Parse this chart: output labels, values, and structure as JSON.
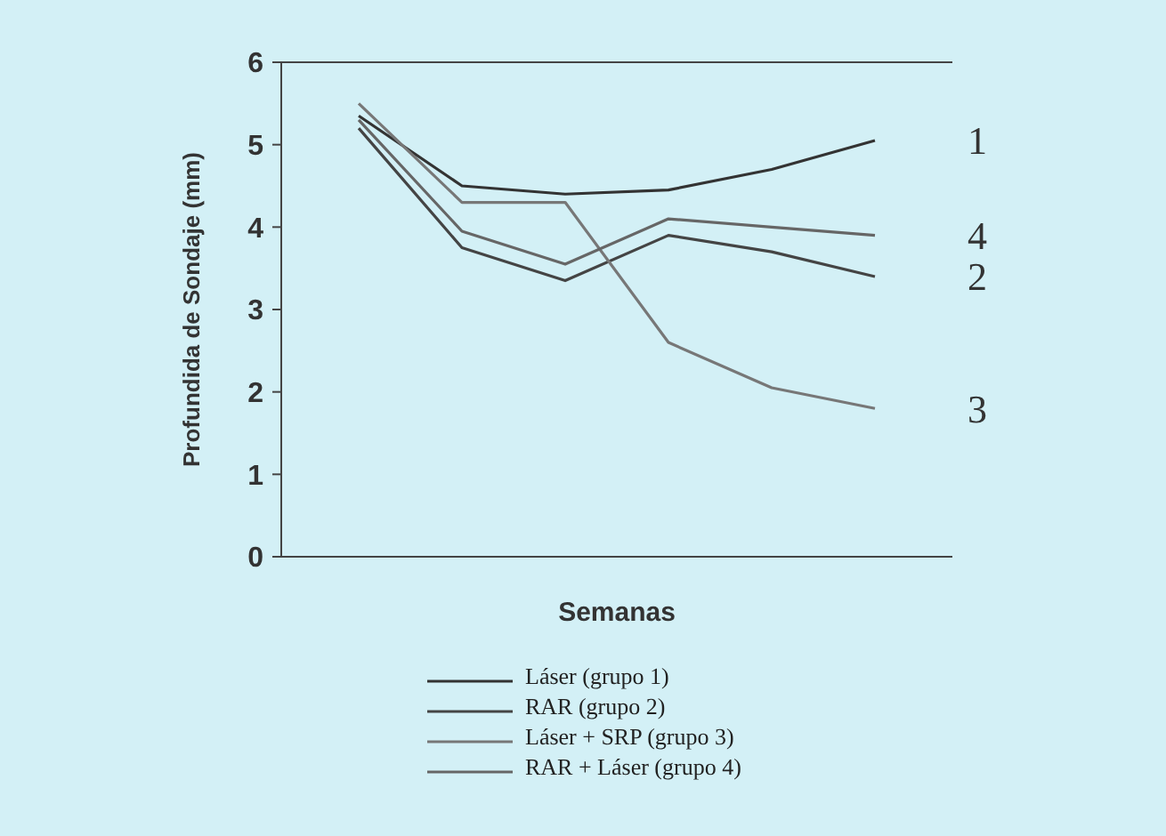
{
  "chart_data": {
    "type": "line",
    "xlabel": "Semanas",
    "ylabel": "Profundida de Sondaje (mm)",
    "categories": [
      null,
      null,
      null,
      null,
      null,
      null
    ],
    "ylim": [
      0,
      6
    ],
    "yticks": [
      0,
      1,
      2,
      3,
      4,
      5,
      6
    ],
    "legend": "bottom",
    "series": [
      {
        "name": "Láser (grupo 1)",
        "color": "#333333",
        "values": [
          5.35,
          4.5,
          4.4,
          4.45,
          4.7,
          5.05
        ]
      },
      {
        "name": "RAR (grupo 2)",
        "color": "#444444",
        "values": [
          5.2,
          3.75,
          3.35,
          3.9,
          3.7,
          3.4
        ]
      },
      {
        "name": "Láser + SRP (grupo 3)",
        "color": "#777777",
        "values": [
          5.5,
          4.3,
          4.3,
          2.6,
          2.05,
          1.8
        ]
      },
      {
        "name": "RAR + Láser (grupo 4)",
        "color": "#666666",
        "values": [
          5.3,
          3.95,
          3.55,
          4.1,
          4.0,
          3.9
        ]
      }
    ],
    "annotations": [
      "1",
      "2",
      "3",
      "4"
    ]
  }
}
